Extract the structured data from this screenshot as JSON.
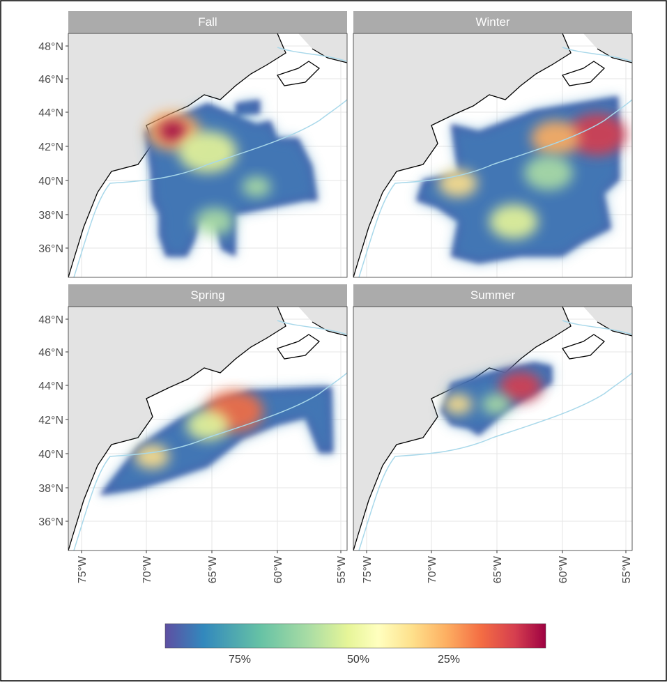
{
  "panels": [
    {
      "title": "Fall"
    },
    {
      "title": "Winter"
    },
    {
      "title": "Spring"
    },
    {
      "title": "Summer"
    }
  ],
  "y_axis": {
    "ticks": [
      "48°N",
      "46°N",
      "44°N",
      "42°N",
      "40°N",
      "38°N",
      "36°N"
    ]
  },
  "x_axis": {
    "ticks": [
      "75°W",
      "70°W",
      "65°W",
      "60°W",
      "55°W"
    ]
  },
  "legend": {
    "labels": [
      "75%",
      "50%",
      "25%"
    ]
  }
}
